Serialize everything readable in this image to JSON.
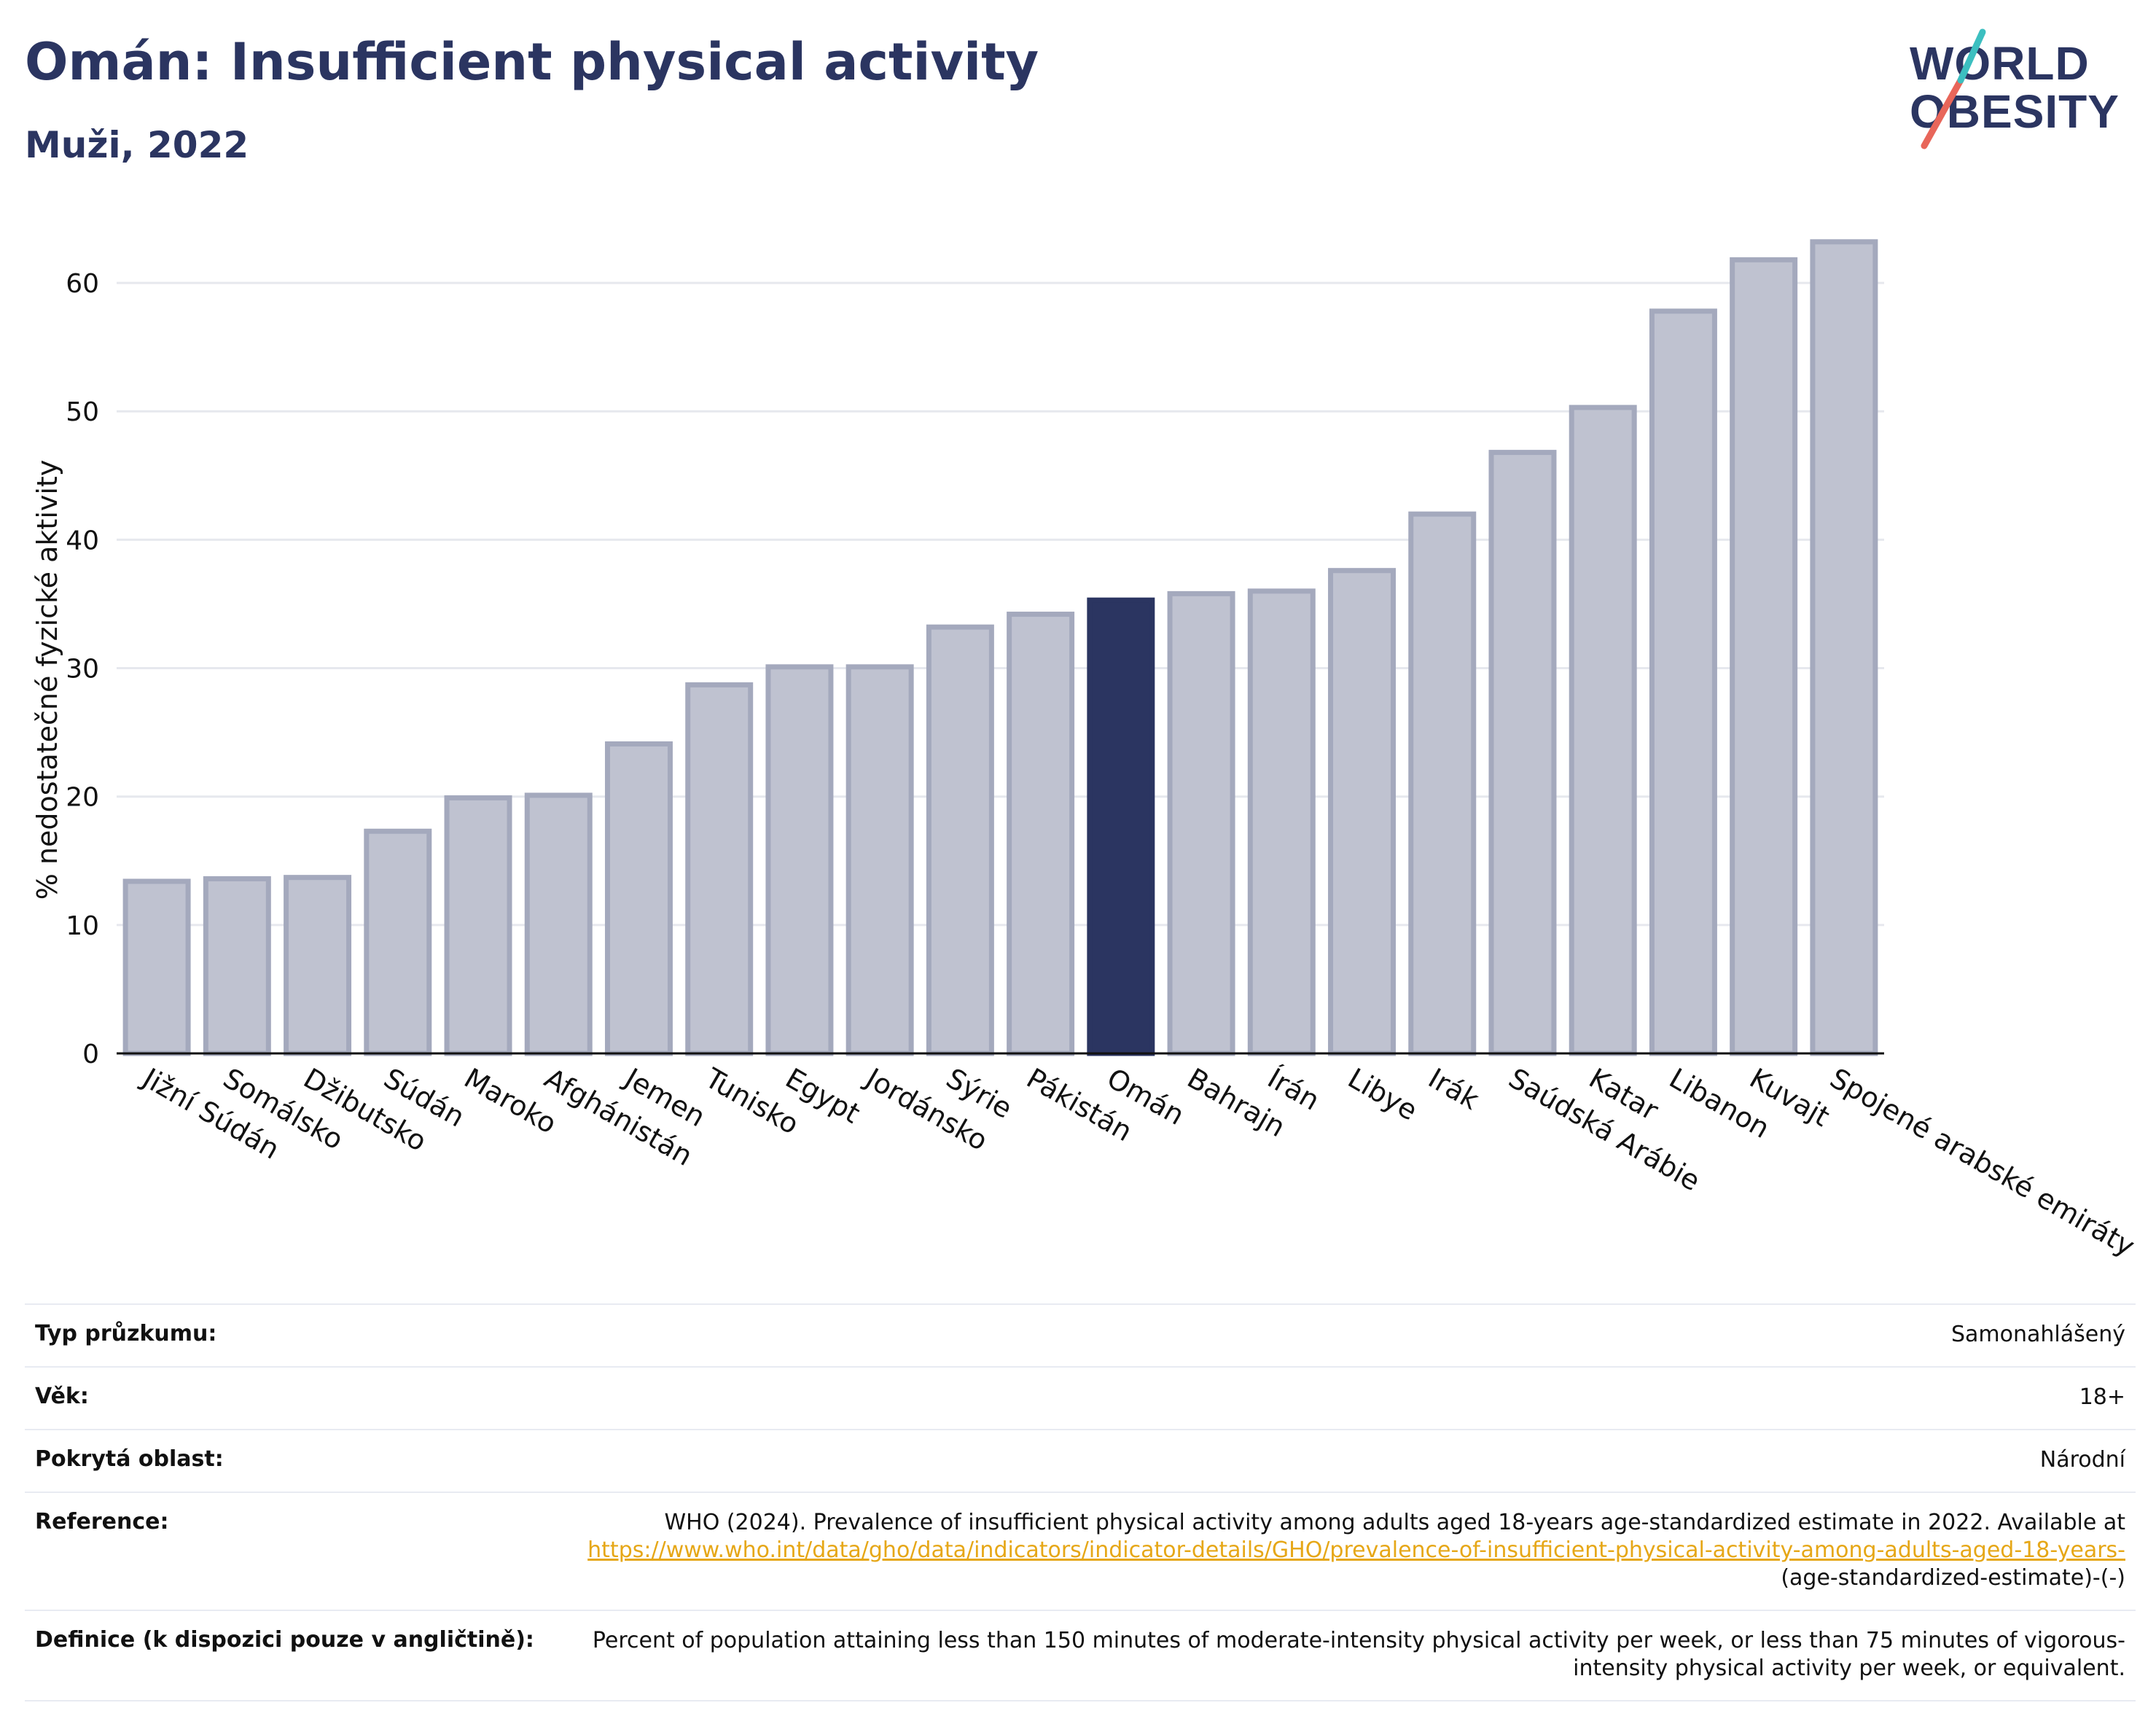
{
  "title": "Omán: Insufficient physical activity",
  "subtitle": "Muži, 2022",
  "logo": {
    "line1": "WORLD",
    "line2": "OBESITY"
  },
  "colors": {
    "highlight": "#2b3561",
    "bar_fill": "#bfc2d0",
    "bar_stroke": "#a4a9bd",
    "accent_red": "#e8665a",
    "accent_teal": "#3cbfc0",
    "link": "#e6a717"
  },
  "chart_data": {
    "type": "bar",
    "ylabel": "% nedostatečné fyzické aktivity",
    "ylim": [
      0,
      65
    ],
    "yticks": [
      0,
      10,
      20,
      30,
      40,
      50,
      60
    ],
    "grid": true,
    "highlight": "Omán",
    "categories": [
      "Jižní Súdán",
      "Somálsko",
      "Džibutsko",
      "Súdán",
      "Maroko",
      "Afghánistán",
      "Jemen",
      "Tunisko",
      "Egypt",
      "Jordánsko",
      "Sýrie",
      "Pákistán",
      "Omán",
      "Bahrajn",
      "Írán",
      "Libye",
      "Irák",
      "Saúdská Arábie",
      "Katar",
      "Libanon",
      "Kuvajt",
      "Spojené arabské emiráty"
    ],
    "values": [
      13.4,
      13.6,
      13.7,
      17.3,
      19.9,
      20.1,
      24.1,
      28.7,
      30.1,
      30.1,
      33.2,
      34.2,
      35.3,
      35.8,
      36.0,
      37.6,
      42.0,
      46.8,
      50.3,
      57.8,
      61.8,
      63.2
    ]
  },
  "info": {
    "survey_label": "Typ průzkumu:",
    "survey_value": "Samonahlášený",
    "age_label": "Věk:",
    "age_value": "18+",
    "area_label": "Pokrytá oblast:",
    "area_value": "Národní",
    "reference_label": "Reference:",
    "reference_text": "WHO (2024). Prevalence of insufficient physical activity among adults aged 18-years age-standardized estimate in 2022. Available at",
    "reference_link": "https://www.who.int/data/gho/data/indicators/indicator-details/GHO/prevalence-of-insufficient-physical-activity-among-adults-aged-18-years-",
    "reference_suffix": "(age-standardized-estimate)-(-)",
    "definition_label": "Definice (k dispozici pouze v angličtině):",
    "definition_text": "Percent of population attaining less than 150 minutes of moderate-intensity physical activity per week, or less than 75 minutes of vigorous-intensity physical activity per week, or equivalent."
  }
}
